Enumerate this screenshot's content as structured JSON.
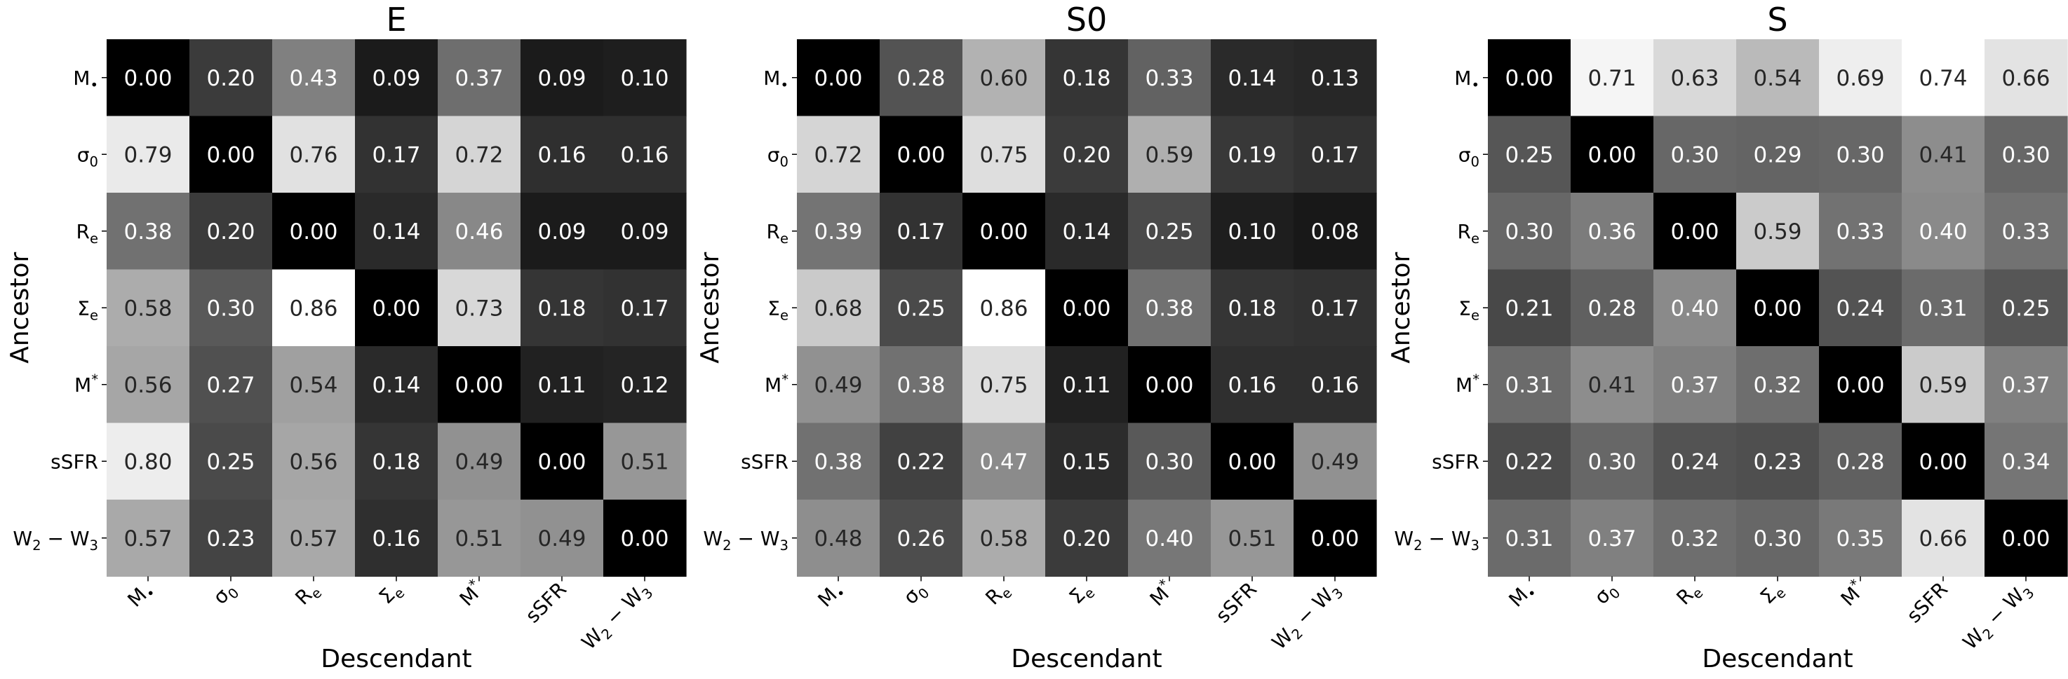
{
  "chart_data": [
    {
      "type": "heatmap",
      "title": "E",
      "xlabel": "Descendant",
      "ylabel": "Ancestor",
      "rows": [
        "M•",
        "σ0",
        "Re",
        "Σe",
        "M*",
        "sSFR",
        "W2 − W3"
      ],
      "cols": [
        "M•",
        "σ0",
        "Re",
        "Σe",
        "M*",
        "sSFR",
        "W2 − W3"
      ],
      "values": [
        [
          0.0,
          0.2,
          0.43,
          0.09,
          0.37,
          0.09,
          0.1
        ],
        [
          0.79,
          0.0,
          0.76,
          0.17,
          0.72,
          0.16,
          0.16
        ],
        [
          0.38,
          0.2,
          0.0,
          0.14,
          0.46,
          0.09,
          0.09
        ],
        [
          0.58,
          0.3,
          0.86,
          0.0,
          0.73,
          0.18,
          0.17
        ],
        [
          0.56,
          0.27,
          0.54,
          0.14,
          0.0,
          0.11,
          0.12
        ],
        [
          0.8,
          0.25,
          0.56,
          0.18,
          0.49,
          0.0,
          0.51
        ],
        [
          0.57,
          0.23,
          0.57,
          0.16,
          0.51,
          0.49,
          0.0
        ]
      ]
    },
    {
      "type": "heatmap",
      "title": "S0",
      "xlabel": "Descendant",
      "ylabel": "Ancestor",
      "rows": [
        "M•",
        "σ0",
        "Re",
        "Σe",
        "M*",
        "sSFR",
        "W2 − W3"
      ],
      "cols": [
        "M•",
        "σ0",
        "Re",
        "Σe",
        "M*",
        "sSFR",
        "W2 − W3"
      ],
      "values": [
        [
          0.0,
          0.28,
          0.6,
          0.18,
          0.33,
          0.14,
          0.13
        ],
        [
          0.72,
          0.0,
          0.75,
          0.2,
          0.59,
          0.19,
          0.17
        ],
        [
          0.39,
          0.17,
          0.0,
          0.14,
          0.25,
          0.1,
          0.08
        ],
        [
          0.68,
          0.25,
          0.86,
          0.0,
          0.38,
          0.18,
          0.17
        ],
        [
          0.49,
          0.38,
          0.75,
          0.11,
          0.0,
          0.16,
          0.16
        ],
        [
          0.38,
          0.22,
          0.47,
          0.15,
          0.3,
          0.0,
          0.49
        ],
        [
          0.48,
          0.26,
          0.58,
          0.2,
          0.4,
          0.51,
          0.0
        ]
      ]
    },
    {
      "type": "heatmap",
      "title": "S",
      "xlabel": "Descendant",
      "ylabel": "Ancestor",
      "rows": [
        "M•",
        "σ0",
        "Re",
        "Σe",
        "M*",
        "sSFR",
        "W2 − W3"
      ],
      "cols": [
        "M•",
        "σ0",
        "Re",
        "Σe",
        "M*",
        "sSFR",
        "W2 − W3"
      ],
      "values": [
        [
          0.0,
          0.71,
          0.63,
          0.54,
          0.69,
          0.74,
          0.66
        ],
        [
          0.25,
          0.0,
          0.3,
          0.29,
          0.3,
          0.41,
          0.3
        ],
        [
          0.3,
          0.36,
          0.0,
          0.59,
          0.33,
          0.4,
          0.33
        ],
        [
          0.21,
          0.28,
          0.4,
          0.0,
          0.24,
          0.31,
          0.25
        ],
        [
          0.31,
          0.41,
          0.37,
          0.32,
          0.0,
          0.59,
          0.37
        ],
        [
          0.22,
          0.3,
          0.24,
          0.23,
          0.28,
          0.0,
          0.34
        ],
        [
          0.31,
          0.37,
          0.32,
          0.3,
          0.35,
          0.66,
          0.0
        ]
      ]
    }
  ]
}
